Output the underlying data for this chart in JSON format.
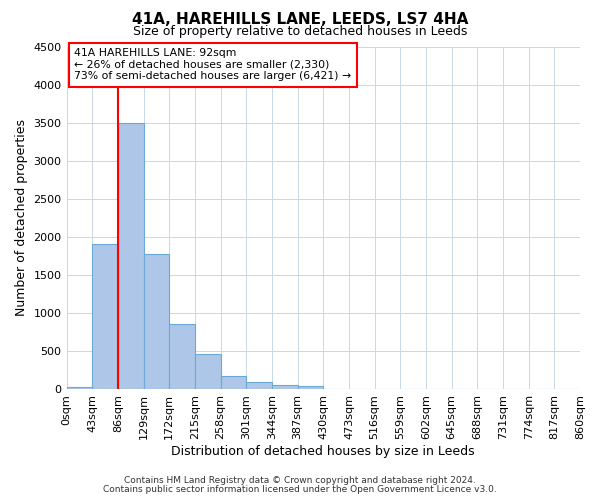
{
  "title": "41A, HAREHILLS LANE, LEEDS, LS7 4HA",
  "subtitle": "Size of property relative to detached houses in Leeds",
  "xlabel": "Distribution of detached houses by size in Leeds",
  "ylabel": "Number of detached properties",
  "bar_edges": [
    0,
    43,
    86,
    129,
    172,
    215,
    258,
    301,
    344,
    387,
    430,
    473,
    516,
    559,
    602,
    645,
    688,
    731,
    774,
    817,
    860
  ],
  "bar_heights": [
    30,
    1900,
    3500,
    1775,
    850,
    460,
    175,
    90,
    55,
    35,
    0,
    0,
    0,
    0,
    0,
    0,
    0,
    0,
    0,
    0
  ],
  "bar_color": "#aec6e8",
  "bar_edge_color": "#6aaad4",
  "property_line_x": 86,
  "property_line_color": "red",
  "ylim": [
    0,
    4500
  ],
  "annotation_text_line1": "41A HAREHILLS LANE: 92sqm",
  "annotation_text_line2": "← 26% of detached houses are smaller (2,330)",
  "annotation_text_line3": "73% of semi-detached houses are larger (6,421) →",
  "footer_line1": "Contains HM Land Registry data © Crown copyright and database right 2024.",
  "footer_line2": "Contains public sector information licensed under the Open Government Licence v3.0.",
  "tick_labels": [
    "0sqm",
    "43sqm",
    "86sqm",
    "129sqm",
    "172sqm",
    "215sqm",
    "258sqm",
    "301sqm",
    "344sqm",
    "387sqm",
    "430sqm",
    "473sqm",
    "516sqm",
    "559sqm",
    "602sqm",
    "645sqm",
    "688sqm",
    "731sqm",
    "774sqm",
    "817sqm",
    "860sqm"
  ],
  "background_color": "#ffffff",
  "grid_color": "#c8d8e8",
  "yticks": [
    0,
    500,
    1000,
    1500,
    2000,
    2500,
    3000,
    3500,
    4000,
    4500
  ]
}
